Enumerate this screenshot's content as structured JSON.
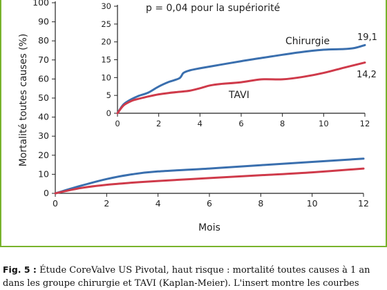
{
  "caption": {
    "label": "Fig. 5 :",
    "line1": "Étude CoreValve US Pivotal, haut risque : mortalité toutes causes à 1 an",
    "line2": "dans les groupe chirurgie et TAVI (Kaplan-Meier). L'insert montre les courbes"
  },
  "colors": {
    "chirurgie": "#3a6fae",
    "tavi": "#cf3a4a",
    "frame": "#78b32c"
  },
  "chart_data": [
    {
      "type": "line",
      "xlabel": "Mois",
      "ylabel": "Mortalité toutes causes (%)",
      "xlim": [
        0,
        12
      ],
      "ylim": [
        0,
        100
      ],
      "xticks": [
        0,
        2,
        4,
        6,
        8,
        10,
        12
      ],
      "yticks": [
        0,
        10,
        20,
        30,
        40,
        50,
        60,
        70,
        80,
        90,
        100
      ],
      "series": [
        {
          "key": "chirurgie",
          "x": [
            0,
            1,
            2,
            3,
            4,
            6,
            8,
            10,
            12
          ],
          "y": [
            0,
            4,
            7.5,
            10,
            11.5,
            13,
            14.8,
            16.5,
            18.2
          ]
        },
        {
          "key": "tavi",
          "x": [
            0,
            1,
            2,
            3,
            4,
            6,
            8,
            10,
            12
          ],
          "y": [
            0,
            2.8,
            4.5,
            5.6,
            6.5,
            8,
            9.5,
            11,
            13
          ]
        }
      ]
    },
    {
      "type": "line",
      "annotation": "p = 0,04 pour la supériorité",
      "xlim": [
        0,
        12
      ],
      "ylim": [
        0,
        30
      ],
      "xticks": [
        0,
        2,
        4,
        6,
        8,
        10,
        12
      ],
      "yticks": [
        0,
        5,
        10,
        15,
        20,
        25,
        30
      ],
      "series": [
        {
          "key": "chirurgie",
          "name": "Chirurgie",
          "end_label": "19,1",
          "x": [
            0,
            0.3,
            0.7,
            1,
            1.5,
            2,
            2.5,
            3,
            3.2,
            3.5,
            4,
            5,
            6,
            7,
            8,
            9,
            10,
            11,
            11.5,
            12
          ],
          "y": [
            0,
            2.5,
            4,
            4.8,
            5.8,
            7.5,
            8.8,
            9.8,
            11.3,
            12,
            12.6,
            13.6,
            14.6,
            15.5,
            16.4,
            17.2,
            17.8,
            18,
            18.3,
            19.1
          ]
        },
        {
          "key": "tavi",
          "name": "TAVI",
          "end_label": "14,2",
          "x": [
            0,
            0.3,
            0.7,
            1,
            1.5,
            2,
            2.5,
            3,
            3.5,
            4,
            4.5,
            5,
            6,
            7,
            8,
            9,
            10,
            11,
            12
          ],
          "y": [
            0,
            2.2,
            3.5,
            4,
            4.7,
            5.3,
            5.7,
            6,
            6.3,
            7,
            7.8,
            8.2,
            8.7,
            9.5,
            9.5,
            10.2,
            11.3,
            12.8,
            14.2
          ]
        }
      ]
    }
  ]
}
